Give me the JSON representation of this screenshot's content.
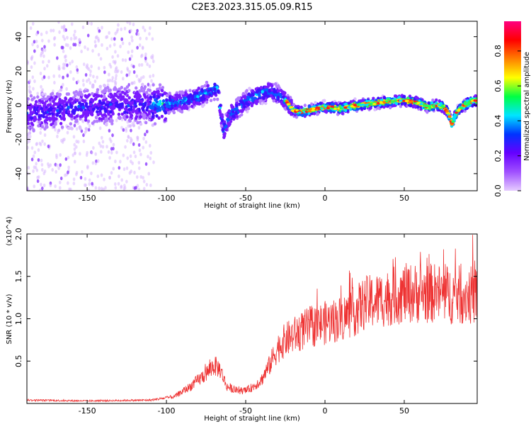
{
  "title": "C2E3.2023.315.05.09.R15",
  "chart_data": [
    {
      "type": "heatmap",
      "xlabel": "Height of straight line (km)",
      "ylabel": "Frequency (Hz)",
      "xlim": [
        -188,
        96
      ],
      "ylim": [
        -50,
        49
      ],
      "x_ticks": [
        -150,
        -100,
        -50,
        0,
        50
      ],
      "y_ticks": [
        -40,
        -20,
        0,
        20,
        40
      ],
      "colorbar": {
        "label": "Normalized spectral amplitude",
        "range": [
          0,
          0.97
        ],
        "ticks": [
          0.0,
          0.2,
          0.4,
          0.6,
          0.8
        ],
        "colors": [
          "#e6ccff",
          "#a050ff",
          "#6600ff",
          "#0033ff",
          "#00e5ff",
          "#00ff44",
          "#ffff00",
          "#ff8000",
          "#ff0000",
          "#ff0080"
        ]
      },
      "ridge": {
        "x": [
          -188,
          -170,
          -150,
          -130,
          -110,
          -90,
          -80,
          -72,
          -68,
          -66,
          -64,
          -62,
          -60,
          -55,
          -50,
          -45,
          -40,
          -35,
          -30,
          -25,
          -20,
          -15,
          -10,
          0,
          10,
          20,
          30,
          40,
          50,
          60,
          65,
          70,
          75,
          78,
          80,
          82,
          85,
          90,
          96
        ],
        "y": [
          -5,
          -3,
          -1,
          0,
          0,
          2,
          5,
          8,
          10,
          -2,
          -15,
          -10,
          -6,
          -2,
          2,
          5,
          7,
          8,
          6,
          3,
          -3,
          -4,
          -3,
          -1,
          -2,
          0,
          1,
          2,
          3,
          1,
          -1,
          0,
          -1,
          -5,
          -11,
          -6,
          -2,
          1,
          3
        ]
      },
      "grid": false
    },
    {
      "type": "line",
      "xlabel": "Height of straight line (km)",
      "ylabel": "SNR (10 * v/v)",
      "y_multiplier": "(x10^4)",
      "xlim": [
        -188,
        96
      ],
      "ylim": [
        0,
        20000
      ],
      "x_ticks": [
        -150,
        -100,
        -50,
        0,
        50
      ],
      "y_ticks": [
        5000,
        10000,
        15000,
        20000
      ],
      "y_tick_labels": [
        "0.5",
        "1.0",
        "1.5",
        "2.0"
      ],
      "series_color": "#ee3333",
      "envelope": {
        "x": [
          -188,
          -150,
          -110,
          -95,
          -85,
          -75,
          -70,
          -66,
          -62,
          -55,
          -50,
          -45,
          -40,
          -35,
          -30,
          -25,
          -20,
          -15,
          -10,
          0,
          10,
          20,
          25,
          30,
          40,
          50,
          60,
          70,
          80,
          90,
          96
        ],
        "y": [
          400,
          300,
          400,
          800,
          2000,
          3500,
          4500,
          4000,
          2000,
          1500,
          1500,
          2000,
          2800,
          4500,
          6500,
          7500,
          8000,
          8500,
          9000,
          9500,
          10000,
          11000,
          11800,
          12000,
          12500,
          13000,
          13000,
          13000,
          12800,
          12800,
          12700
        ]
      },
      "grid": false
    }
  ]
}
